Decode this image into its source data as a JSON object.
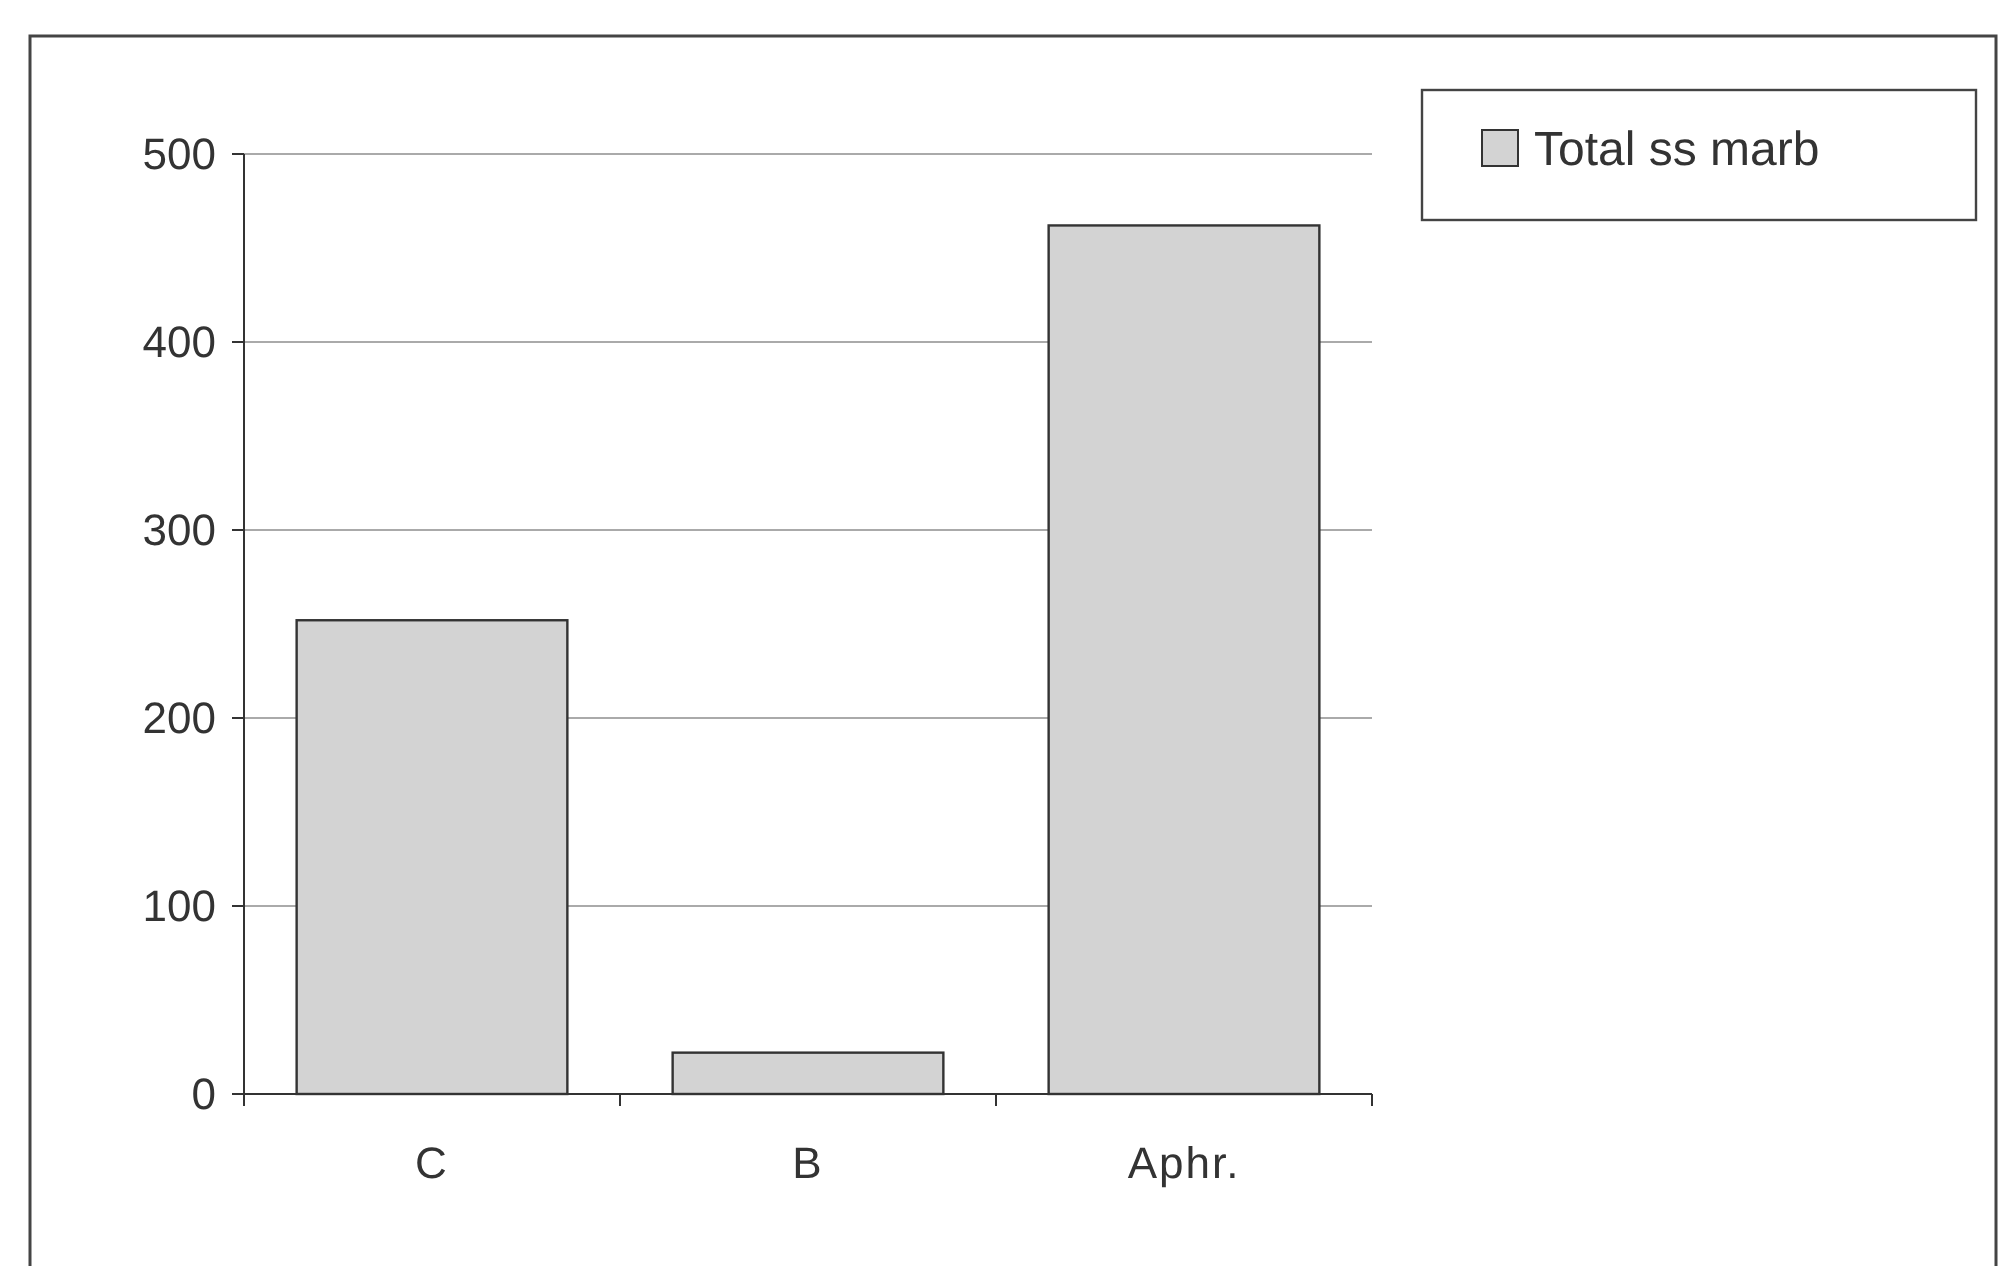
{
  "chart_data": {
    "type": "bar",
    "categories": [
      "C",
      "B",
      "Aphr."
    ],
    "series": [
      {
        "name": "Total ss marb",
        "color": "#d3d3d3",
        "values": [
          252,
          22,
          462
        ]
      }
    ],
    "ylim": [
      0,
      500
    ],
    "yticks": [
      0,
      100,
      200,
      300,
      400,
      500
    ],
    "grid": "y",
    "legend": "top right"
  }
}
